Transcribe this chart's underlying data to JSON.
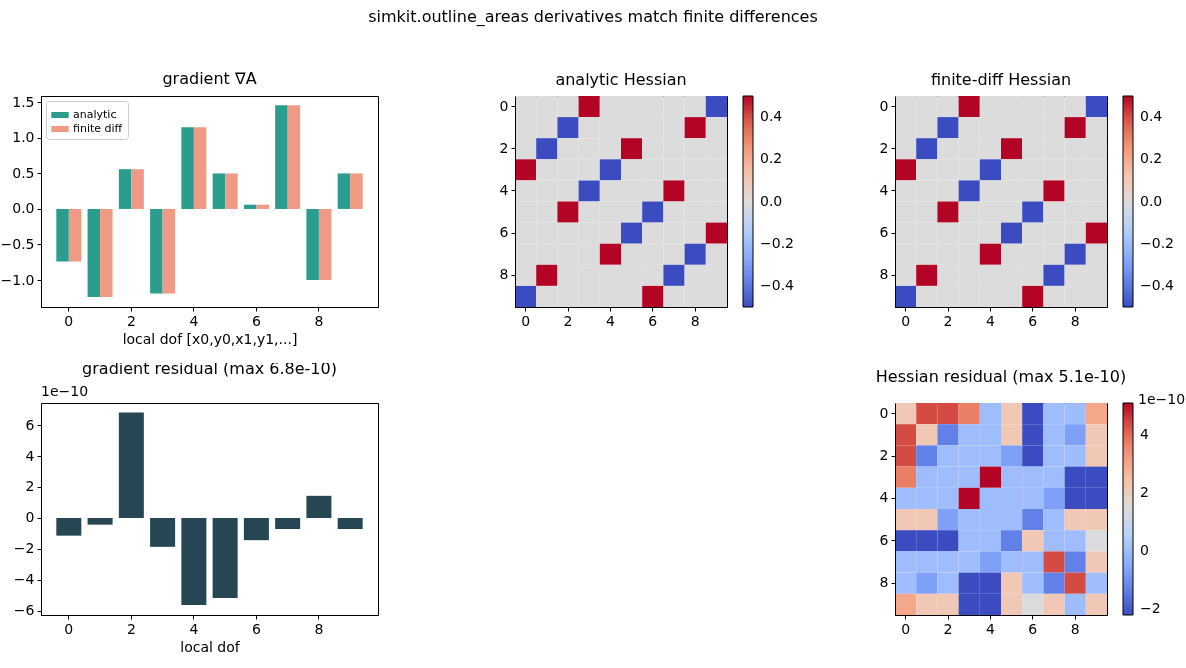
{
  "chart_data": [
    {
      "type": "other",
      "title": "simkit.outline_areas derivatives match finite differences"
    },
    {
      "type": "bar",
      "title": "gradient ∇A",
      "xlabel": "local dof [x0,y0,x1,y1,...]",
      "categories": [
        "0",
        null,
        "2",
        null,
        "4",
        null,
        "6",
        null,
        "8",
        null
      ],
      "series": [
        {
          "name": "analytic",
          "color": "#2a9d8f",
          "values": [
            -0.74,
            -1.24,
            0.56,
            -1.19,
            1.15,
            0.5,
            0.06,
            1.46,
            -1.0,
            0.5
          ]
        },
        {
          "name": "finite diff",
          "color": "#ee9a85",
          "values": [
            -0.74,
            -1.24,
            0.56,
            -1.19,
            1.15,
            0.5,
            0.06,
            1.46,
            -1.0,
            0.5
          ]
        }
      ],
      "ylim": [
        -1.38,
        1.59
      ],
      "yticks": [
        {
          "value": -1,
          "label": "−1.0"
        },
        {
          "value": -0.5,
          "label": "−0.5"
        },
        {
          "value": 0,
          "label": "0.0"
        },
        0.5,
        {
          "value": 1,
          "label": "1.0"
        },
        1.5
      ],
      "legend": "top left"
    },
    {
      "type": "heatmap",
      "title": "analytic Hessian",
      "categories": [
        "0",
        null,
        "2",
        null,
        "4",
        null,
        "6",
        null,
        "8",
        null
      ],
      "y_categories": [
        "0",
        null,
        "2",
        null,
        "4",
        null,
        "6",
        null,
        "8",
        null
      ],
      "cells": [
        [
          0,
          0,
          0,
          0.5,
          0,
          0,
          0,
          0,
          0,
          -0.5
        ],
        [
          0,
          0,
          -0.5,
          0,
          0,
          0,
          0,
          0,
          0.5,
          0
        ],
        [
          0,
          -0.5,
          0,
          0,
          0,
          0.5,
          0,
          0,
          0,
          0
        ],
        [
          0.5,
          0,
          0,
          0,
          -0.5,
          0,
          0,
          0,
          0,
          0
        ],
        [
          0,
          0,
          0,
          -0.5,
          0,
          0,
          0,
          0.5,
          0,
          0
        ],
        [
          0,
          0,
          0.5,
          0,
          0,
          0,
          -0.5,
          0,
          0,
          0
        ],
        [
          0,
          0,
          0,
          0,
          0,
          -0.5,
          0,
          0,
          0,
          0.5
        ],
        [
          0,
          0,
          0,
          0,
          0.5,
          0,
          0,
          0,
          -0.5,
          0
        ],
        [
          0,
          0.5,
          0,
          0,
          0,
          0,
          0,
          -0.5,
          0,
          0
        ],
        [
          -0.5,
          0,
          0,
          0,
          0,
          0,
          0.5,
          0,
          0,
          0
        ]
      ],
      "clim": [
        -0.5,
        0.5
      ],
      "cticks": [
        {
          "value": -0.4,
          "label": "−0.4"
        },
        {
          "value": -0.2,
          "label": "−0.2"
        },
        {
          "value": 0,
          "label": "0.0"
        },
        0.2,
        0.4
      ]
    },
    {
      "type": "heatmap",
      "title": "finite-diff Hessian",
      "categories": [
        "0",
        null,
        "2",
        null,
        "4",
        null,
        "6",
        null,
        "8",
        null
      ],
      "y_categories": [
        "0",
        null,
        "2",
        null,
        "4",
        null,
        "6",
        null,
        "8",
        null
      ],
      "cells": [
        [
          0,
          0,
          0,
          0.5,
          0,
          0,
          0,
          0,
          0,
          -0.5
        ],
        [
          0,
          0,
          -0.5,
          0,
          0,
          0,
          0,
          0,
          0.5,
          0
        ],
        [
          0,
          -0.5,
          0,
          0,
          0,
          0.5,
          0,
          0,
          0,
          0
        ],
        [
          0.5,
          0,
          0,
          0,
          -0.5,
          0,
          0,
          0,
          0,
          0
        ],
        [
          0,
          0,
          0,
          -0.5,
          0,
          0,
          0,
          0.5,
          0,
          0
        ],
        [
          0,
          0,
          0.5,
          0,
          0,
          0,
          -0.5,
          0,
          0,
          0
        ],
        [
          0,
          0,
          0,
          0,
          0,
          -0.5,
          0,
          0,
          0,
          0.5
        ],
        [
          0,
          0,
          0,
          0,
          0.5,
          0,
          0,
          0,
          -0.5,
          0
        ],
        [
          0,
          0.5,
          0,
          0,
          0,
          0,
          0,
          -0.5,
          0,
          0
        ],
        [
          -0.5,
          0,
          0,
          0,
          0,
          0,
          0.5,
          0,
          0,
          0
        ]
      ],
      "clim": [
        -0.5,
        0.5
      ],
      "cticks": [
        {
          "value": -0.4,
          "label": "−0.4"
        },
        {
          "value": -0.2,
          "label": "−0.2"
        },
        {
          "value": 0,
          "label": "0.0"
        },
        0.2,
        0.4
      ]
    },
    {
      "type": "bar",
      "title": "gradient residual (max 6.8e-10)",
      "xlabel": "local dof",
      "categories": [
        "0",
        null,
        "2",
        null,
        "4",
        null,
        "6",
        null,
        "8",
        null
      ],
      "values": [
        -1.14,
        -0.43,
        6.8,
        -1.86,
        -5.62,
        -5.16,
        -1.43,
        -0.71,
        1.43,
        -0.71
      ],
      "color": "#264653",
      "ylim": [
        -6.26,
        7.42
      ],
      "yticks": [
        {
          "value": -6,
          "label": "−6"
        },
        {
          "value": -4,
          "label": "−4"
        },
        {
          "value": -2,
          "label": "−2"
        },
        0,
        2,
        4,
        6
      ],
      "annotations": [
        "1e−10"
      ]
    },
    {
      "type": "heatmap",
      "title": "Hessian residual (max 5.1e-10)",
      "categories": [
        "0",
        null,
        "2",
        null,
        "4",
        null,
        "6",
        null,
        "8",
        null
      ],
      "y_categories": [
        "0",
        null,
        "2",
        null,
        "4",
        null,
        "6",
        null,
        "8",
        null
      ],
      "cells": [
        [
          2.2,
          4.4,
          4.4,
          3.7,
          0,
          2.2,
          -2.2,
          0,
          0,
          3.0
        ],
        [
          4.4,
          2.2,
          -1.3,
          0,
          0,
          2.2,
          -2.2,
          0,
          -0.7,
          2.2
        ],
        [
          4.4,
          -1.3,
          0,
          0,
          0,
          -0.7,
          -2.2,
          0,
          0,
          2.2
        ],
        [
          3.7,
          0,
          0,
          0,
          5.1,
          0,
          0,
          0,
          -2.2,
          -2.2
        ],
        [
          0,
          0,
          0,
          5.1,
          0,
          0,
          0,
          -0.7,
          -2.2,
          -2.2
        ],
        [
          2.2,
          2.2,
          -0.7,
          0,
          0,
          0,
          -1.3,
          0,
          2.2,
          2.2
        ],
        [
          -2.2,
          -2.2,
          -2.2,
          0,
          0,
          -1.3,
          2.2,
          0,
          0,
          1.4
        ],
        [
          0,
          0,
          0,
          0,
          -0.7,
          0,
          0,
          4.4,
          -1.3,
          2.2
        ],
        [
          0,
          -0.7,
          0,
          -2.2,
          -2.2,
          2.2,
          0,
          -1.3,
          4.4,
          0
        ],
        [
          3.0,
          2.2,
          2.2,
          -2.2,
          -2.2,
          2.2,
          1.4,
          2.2,
          0,
          2.2
        ]
      ],
      "clim": [
        -2.2,
        5.1
      ],
      "cticks": [
        {
          "value": -2,
          "label": "−2"
        },
        0,
        2,
        4
      ],
      "annotations": [
        "1e−10"
      ]
    }
  ]
}
